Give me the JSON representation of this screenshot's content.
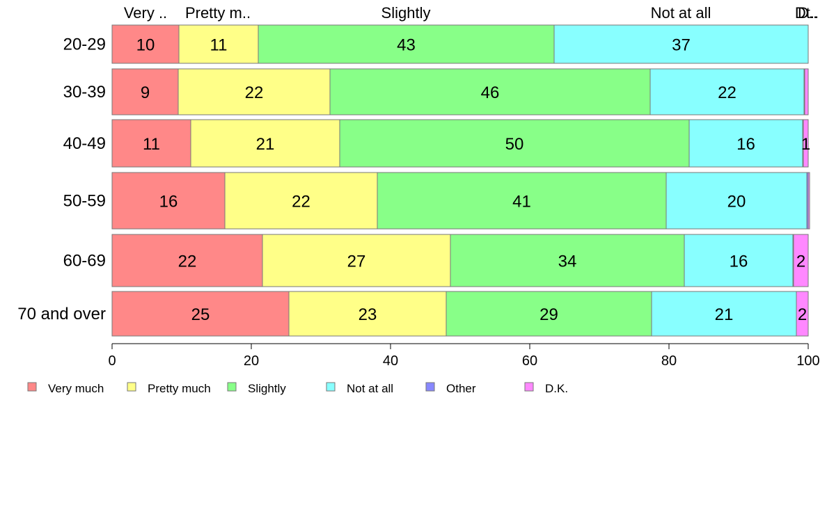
{
  "chart_data": {
    "type": "bar",
    "orientation": "horizontal",
    "stacked": true,
    "categories": [
      "20-29",
      "30-39",
      "40-49",
      "50-59",
      "60-69",
      "70 and over"
    ],
    "series": [
      {
        "name": "Very much",
        "color": "#ff8888",
        "values": [
          9.6,
          9.5,
          11.3,
          16.2,
          21.6,
          25.4
        ],
        "labels": [
          "10",
          "9",
          "11",
          "16",
          "22",
          "25"
        ]
      },
      {
        "name": "Pretty much",
        "color": "#ffff88",
        "values": [
          11.4,
          21.8,
          21.4,
          21.9,
          27.0,
          22.6
        ],
        "labels": [
          "11",
          "22",
          "21",
          "22",
          "27",
          "23"
        ]
      },
      {
        "name": "Slightly",
        "color": "#88ff88",
        "values": [
          42.5,
          46.0,
          50.2,
          41.5,
          33.6,
          29.5
        ],
        "labels": [
          "43",
          "46",
          "50",
          "41",
          "34",
          "29"
        ]
      },
      {
        "name": "Not at all",
        "color": "#88ffff",
        "values": [
          36.5,
          22.1,
          16.3,
          20.2,
          15.6,
          20.8
        ],
        "labels": [
          "37",
          "22",
          "16",
          "20",
          "16",
          "21"
        ]
      },
      {
        "name": "Other",
        "color": "#8888ff",
        "values": [
          0,
          0.1,
          0.1,
          0.2,
          0.1,
          0
        ],
        "labels": [
          "",
          "",
          "",
          "",
          "",
          ""
        ]
      },
      {
        "name": "D.K.",
        "color": "#ff88ff",
        "values": [
          0,
          0.5,
          0.7,
          0.2,
          2.1,
          1.7
        ],
        "labels": [
          "",
          "",
          "1",
          "",
          "2",
          "2"
        ]
      }
    ],
    "column_headers": [
      "Very ..",
      "Pretty m..",
      "Slightly",
      "Not at all",
      "Dt..",
      "D.."
    ],
    "xlim": [
      0,
      100
    ],
    "xticks": [
      "0",
      "20",
      "40",
      "60",
      "80",
      "100"
    ],
    "legend": [
      "Very much",
      "Pretty much",
      "Slightly",
      "Not at all",
      "Other",
      "D.K."
    ],
    "legend_position": "bottom",
    "grid": false
  }
}
